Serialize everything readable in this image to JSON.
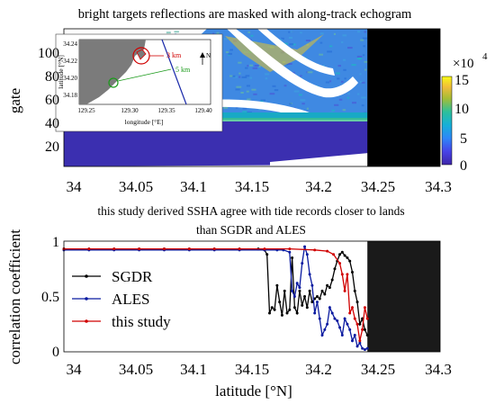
{
  "figure": {
    "top_title": "bright targets reflections are masked with along-track echogram",
    "bottom_title_line1": "this study derived SSHA agree with tide records closer to lands",
    "bottom_title_line2": "than SGDR and ALES"
  },
  "chart_data": [
    {
      "type": "heatmap",
      "title": "bright targets reflections are masked with along-track echogram",
      "ylabel": "gate",
      "xlabel": "",
      "xlim": [
        34,
        34.3
      ],
      "ylim": [
        1,
        120
      ],
      "xticks": [
        "34",
        "34.05",
        "34.1",
        "34.15",
        "34.2",
        "34.25",
        "34.3"
      ],
      "yticks": [
        "20",
        "40",
        "60",
        "80",
        "100"
      ],
      "colorbar": {
        "range": [
          0,
          150000
        ],
        "ticks": [
          "0",
          "5",
          "10",
          "15"
        ],
        "multiplier": "×10",
        "multiplier_exponent": "4",
        "colormap": "parula"
      },
      "masked_region": {
        "x_start": 34.242,
        "x_end": 34.3,
        "color": "#000000"
      },
      "inset": {
        "xlabel": "longitude [°E]",
        "ylabel": "latitude [°N]",
        "xticks": [
          "129.25",
          "129.30",
          "129.35",
          "129.40"
        ],
        "yticks": [
          "34.24",
          "34.22",
          "34.20",
          "34.18"
        ],
        "annotations": [
          "3 km",
          "5 km"
        ],
        "north_label": "N"
      }
    },
    {
      "type": "line",
      "title": "this study derived SSHA agree with tide records closer to lands than SGDR and ALES",
      "xlabel": "latitude [°N]",
      "ylabel": "correlation coefficient",
      "xlim": [
        34,
        34.3
      ],
      "ylim": [
        0,
        1
      ],
      "xticks": [
        "34",
        "34.05",
        "34.1",
        "34.15",
        "34.2",
        "34.25",
        "34.3"
      ],
      "yticks": [
        "0",
        "0.5",
        "1"
      ],
      "legend_position": "left",
      "masked_region": {
        "x_start": 34.242,
        "x_end": 34.3,
        "color": "#1a1a1a"
      },
      "series": [
        {
          "name": "SGDR",
          "color": "#000000",
          "x": [
            34.0,
            34.02,
            34.04,
            34.06,
            34.08,
            34.1,
            34.12,
            34.14,
            34.155,
            34.16,
            34.162,
            34.164,
            34.166,
            34.168,
            34.17,
            34.172,
            34.174,
            34.176,
            34.178,
            34.18,
            34.182,
            34.184,
            34.186,
            34.188,
            34.19,
            34.192,
            34.194,
            34.196,
            34.198,
            34.2,
            34.202,
            34.204,
            34.206,
            34.208,
            34.21,
            34.212,
            34.214,
            34.216,
            34.218,
            34.22,
            34.222,
            34.224,
            34.226,
            34.228,
            34.23,
            34.232,
            34.234,
            34.236,
            34.238,
            34.24,
            34.242
          ],
          "y": [
            0.93,
            0.93,
            0.93,
            0.93,
            0.93,
            0.93,
            0.93,
            0.93,
            0.93,
            0.92,
            0.88,
            0.35,
            0.4,
            0.38,
            0.6,
            0.45,
            0.33,
            0.55,
            0.35,
            0.38,
            0.85,
            0.4,
            0.35,
            0.55,
            0.42,
            0.5,
            0.4,
            0.55,
            0.45,
            0.48,
            0.5,
            0.48,
            0.55,
            0.52,
            0.6,
            0.58,
            0.65,
            0.75,
            0.82,
            0.88,
            0.9,
            0.87,
            0.85,
            0.82,
            0.72,
            0.55,
            0.45,
            0.25,
            0.3,
            0.2,
            0.15
          ]
        },
        {
          "name": "ALES",
          "color": "#0a1aa0",
          "x": [
            34.0,
            34.02,
            34.04,
            34.06,
            34.08,
            34.1,
            34.12,
            34.14,
            34.16,
            34.17,
            34.175,
            34.18,
            34.182,
            34.184,
            34.186,
            34.188,
            34.19,
            34.192,
            34.194,
            34.196,
            34.198,
            34.2,
            34.202,
            34.204,
            34.206,
            34.208,
            34.21,
            34.212,
            34.214,
            34.216,
            34.218,
            34.22,
            34.222,
            34.224,
            34.226,
            34.228,
            34.23,
            34.232,
            34.234,
            34.236,
            34.238,
            34.24,
            34.242
          ],
          "y": [
            0.92,
            0.92,
            0.92,
            0.92,
            0.92,
            0.92,
            0.92,
            0.92,
            0.92,
            0.92,
            0.92,
            0.9,
            0.55,
            0.5,
            0.62,
            0.58,
            0.8,
            0.95,
            0.88,
            0.7,
            0.6,
            0.35,
            0.45,
            0.3,
            0.15,
            0.2,
            0.25,
            0.4,
            0.35,
            0.3,
            0.28,
            0.22,
            0.15,
            0.3,
            0.25,
            0.2,
            0.1,
            0.15,
            0.05,
            0.08,
            0.03,
            0.02,
            0.03
          ]
        },
        {
          "name": "this study",
          "color": "#d00000",
          "x": [
            34.0,
            34.02,
            34.04,
            34.06,
            34.08,
            34.1,
            34.12,
            34.14,
            34.16,
            34.18,
            34.2,
            34.21,
            34.215,
            34.22,
            34.222,
            34.224,
            34.226,
            34.228,
            34.23,
            34.232,
            34.234,
            34.236,
            34.238,
            34.24,
            34.242
          ],
          "y": [
            0.93,
            0.93,
            0.93,
            0.93,
            0.93,
            0.93,
            0.93,
            0.93,
            0.93,
            0.93,
            0.92,
            0.91,
            0.88,
            0.8,
            0.7,
            0.55,
            0.7,
            0.35,
            0.4,
            0.3,
            0.25,
            0.1,
            0.2,
            0.4,
            0.3
          ]
        }
      ]
    }
  ]
}
